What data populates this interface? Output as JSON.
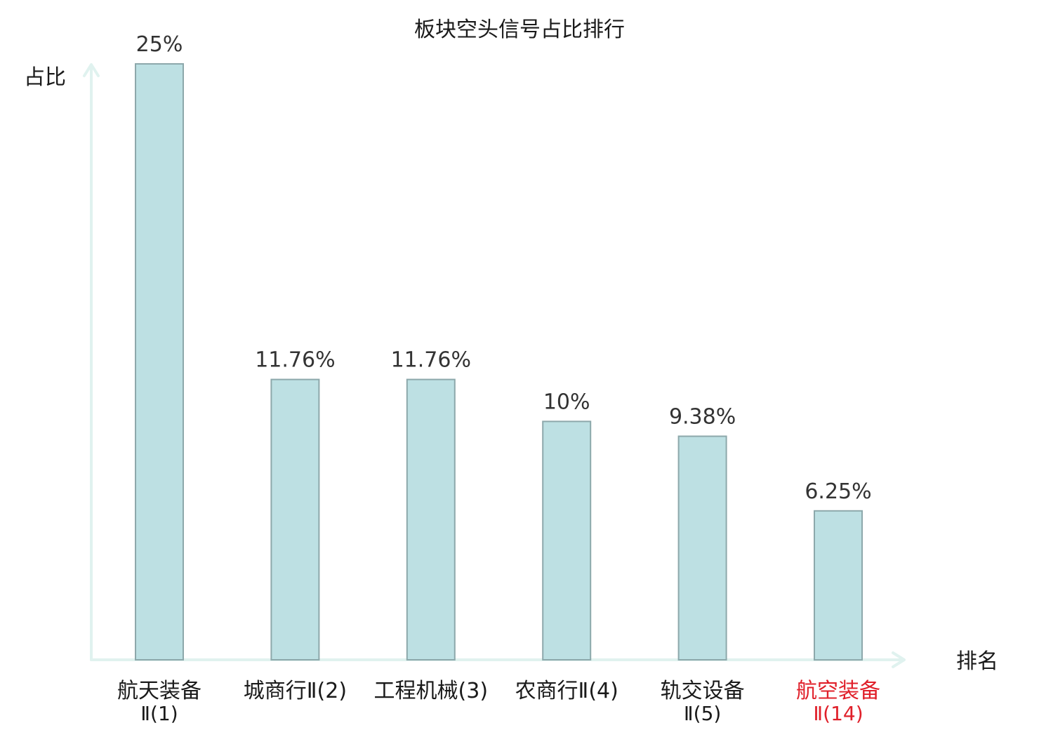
{
  "chart_data": {
    "type": "bar",
    "title": "板块空头信号占比排行",
    "ylabel": "占比",
    "xlabel": "排名",
    "categories": [
      [
        "航天装备",
        "Ⅱ(1)"
      ],
      [
        "城商行Ⅱ(2)"
      ],
      [
        "工程机械(3)"
      ],
      [
        "农商行Ⅱ(4)"
      ],
      [
        "轨交设备",
        "Ⅱ(5)"
      ],
      [
        "航空装备",
        "Ⅱ(14)"
      ]
    ],
    "values": [
      25,
      11.76,
      11.76,
      10,
      9.38,
      6.25
    ],
    "value_labels": [
      "25%",
      "11.76%",
      "11.76%",
      "10%",
      "9.38%",
      "6.25%"
    ],
    "highlight_index": 5,
    "ylim": [
      0,
      25
    ],
    "grid": false,
    "legend": "none",
    "colors": {
      "bar_fill": "#bde0e3",
      "bar_stroke": "#8da8ab",
      "axis": "#e0f2ef",
      "highlight_text": "#e0202a"
    }
  }
}
